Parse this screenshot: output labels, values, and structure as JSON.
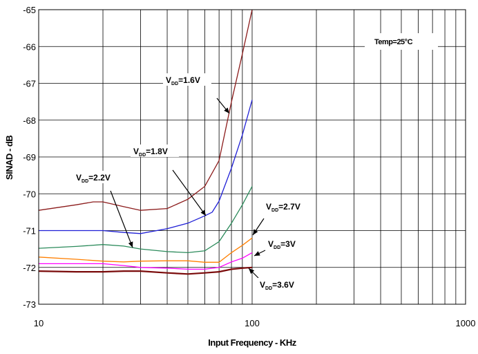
{
  "chart_data": {
    "type": "line",
    "xlabel": "Input Frequency - KHz",
    "ylabel": "SINAD - dB",
    "x_scale": "log",
    "xlim": [
      10,
      1000
    ],
    "ylim": [
      -73,
      -65
    ],
    "x_ticks": [
      10,
      100,
      1000
    ],
    "x_tick_labels": [
      "10",
      "100",
      "1000"
    ],
    "y_ticks": [
      -65,
      -66,
      -67,
      -68,
      -69,
      -70,
      -71,
      -72,
      -73
    ],
    "grid": true,
    "note": "Temp=25°C",
    "series": [
      {
        "name": "VDD=1.6V",
        "label_main": "V",
        "label_sub": "DD",
        "label_rest": "=1.6V",
        "color": "#8b1a1a",
        "x": [
          10,
          15,
          18,
          20,
          25,
          30,
          40,
          50,
          60,
          70,
          80,
          90,
          100
        ],
        "y": [
          -70.45,
          -70.3,
          -70.22,
          -70.22,
          -70.35,
          -70.45,
          -70.4,
          -70.15,
          -69.8,
          -69.1,
          -67.5,
          -66.2,
          -65.0
        ]
      },
      {
        "name": "VDD=1.8V",
        "label_main": "V",
        "label_sub": "DD",
        "label_rest": "=1.8V",
        "color": "#1f1fd6",
        "x": [
          10,
          15,
          20,
          25,
          30,
          40,
          50,
          60,
          65,
          70,
          80,
          90,
          100
        ],
        "y": [
          -71.0,
          -71.0,
          -71.0,
          -71.05,
          -71.08,
          -70.95,
          -70.8,
          -70.6,
          -70.5,
          -70.2,
          -69.3,
          -68.4,
          -67.45
        ]
      },
      {
        "name": "VDD=2.2V",
        "label_main": "V",
        "label_sub": "DD",
        "label_rest": "=2.2V",
        "color": "#2a8a5a",
        "x": [
          10,
          15,
          20,
          25,
          30,
          40,
          50,
          60,
          70,
          80,
          90,
          100
        ],
        "y": [
          -71.48,
          -71.43,
          -71.38,
          -71.42,
          -71.5,
          -71.57,
          -71.6,
          -71.55,
          -71.3,
          -70.8,
          -70.3,
          -69.8
        ]
      },
      {
        "name": "VDD=2.7V",
        "label_main": "V",
        "label_sub": "DD",
        "label_rest": "=2.7V",
        "color": "#ff7f00",
        "x": [
          10,
          15,
          20,
          25,
          30,
          40,
          50,
          60,
          70,
          80,
          90,
          100
        ],
        "y": [
          -71.72,
          -71.78,
          -71.83,
          -71.85,
          -71.83,
          -71.82,
          -71.82,
          -71.86,
          -71.86,
          -71.6,
          -71.4,
          -71.2
        ]
      },
      {
        "name": "VDD=3V",
        "label_main": "V",
        "label_sub": "DD",
        "label_rest": "=3V",
        "color": "#ff00ff",
        "x": [
          10,
          15,
          20,
          25,
          30,
          40,
          50,
          60,
          70,
          80,
          90,
          100
        ],
        "y": [
          -71.9,
          -71.9,
          -71.9,
          -71.95,
          -72.0,
          -72.02,
          -72.05,
          -72.05,
          -72.0,
          -71.85,
          -71.75,
          -71.6
        ]
      },
      {
        "name": "VDD=3.6V",
        "label_main": "V",
        "label_sub": "DD",
        "label_rest": "=3.6V",
        "color": "#7a0a0a",
        "x": [
          10,
          15,
          20,
          25,
          30,
          40,
          50,
          60,
          70,
          80,
          90,
          100
        ],
        "y": [
          -72.1,
          -72.12,
          -72.12,
          -72.1,
          -72.1,
          -72.15,
          -72.18,
          -72.15,
          -72.12,
          -72.05,
          -72.02,
          -72.0
        ]
      }
    ]
  }
}
